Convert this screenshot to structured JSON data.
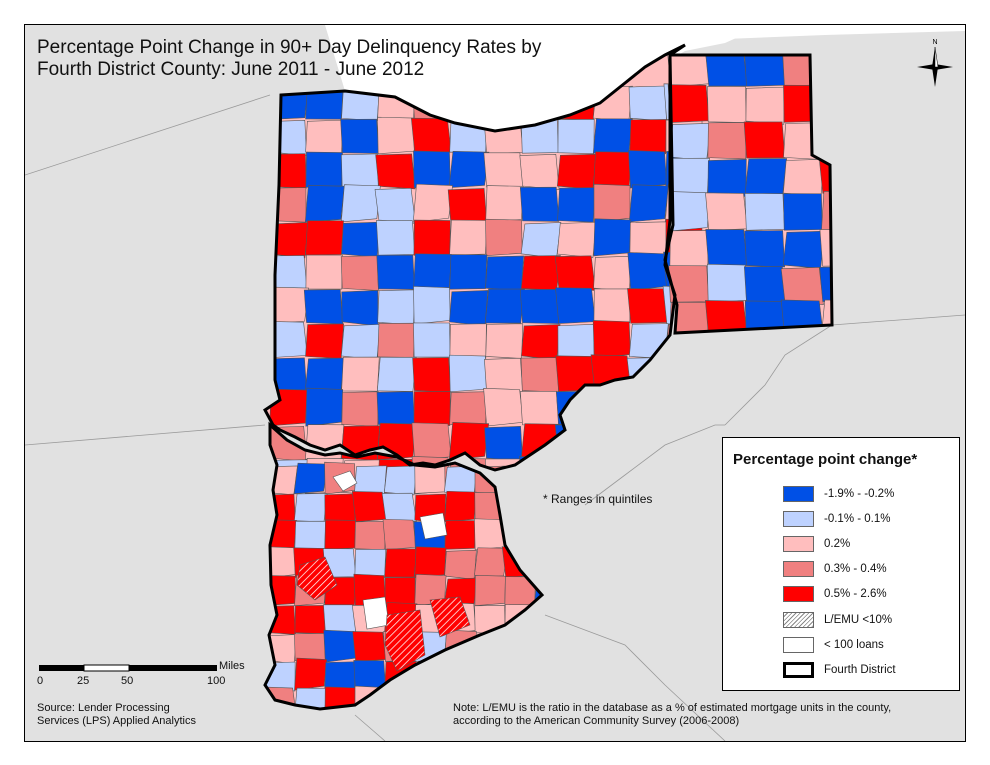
{
  "title": {
    "line1": "Percentage Point Change in 90+ Day Delinquency Rates by",
    "line2": "Fourth District County: June 2011 - June 2012"
  },
  "ranges_note": "* Ranges in quintiles",
  "legend": {
    "title": "Percentage point change*",
    "items": [
      {
        "label": "-1.9% - -0.2%",
        "color": "#0050e6"
      },
      {
        "label": "-0.1% - 0.1%",
        "color": "#bed2ff"
      },
      {
        "label": "0.2%",
        "color": "#ffbebe"
      },
      {
        "label": "0.3% - 0.4%",
        "color": "#f08080"
      },
      {
        "label": "0.5% - 2.6%",
        "color": "#ff0000"
      },
      {
        "label": "L/EMU <10%",
        "color": "hatch"
      },
      {
        "label": "< 100 loans",
        "color": "#ffffff"
      },
      {
        "label": "Fourth District",
        "color": "outline"
      }
    ]
  },
  "scale": {
    "unit": "Miles",
    "ticks": [
      "0",
      "25",
      "50",
      "100"
    ]
  },
  "compass_label": "N",
  "source": {
    "line1": "Source: Lender Processing",
    "line2": "Services (LPS) Applied Analytics"
  },
  "footnote": {
    "line1": "Note: L/EMU is the ratio in the database as a % of estimated mortgage units in the county,",
    "line2": "according to the American Community Survey (2006-2008)"
  },
  "colors": {
    "background_land": "#e1e1e1",
    "lake": "#ffffff",
    "district_outline": "#000000"
  }
}
